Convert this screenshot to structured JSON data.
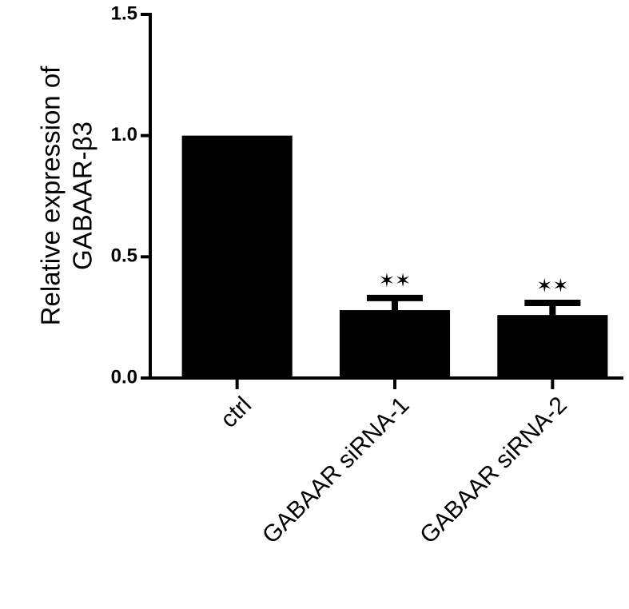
{
  "chart_data": {
    "type": "bar",
    "ylabel": [
      "Relative expression of",
      "GABAAR-β3"
    ],
    "categories": [
      "ctrl",
      "GABAAR siRNA-1",
      "GABAAR siRNA-2"
    ],
    "values": [
      1.0,
      0.28,
      0.26
    ],
    "errors": [
      null,
      0.05,
      0.05
    ],
    "annotations": [
      null,
      "✶✶",
      "✶✶"
    ],
    "color": "#000000",
    "ylim": [
      0,
      1.5
    ],
    "yticks": [
      {
        "value": 0,
        "label": "0.0"
      },
      {
        "value": 0.5,
        "label": "0.5"
      },
      {
        "value": 1,
        "label": "1.0"
      },
      {
        "value": 1.5,
        "label": "1.5"
      }
    ]
  }
}
